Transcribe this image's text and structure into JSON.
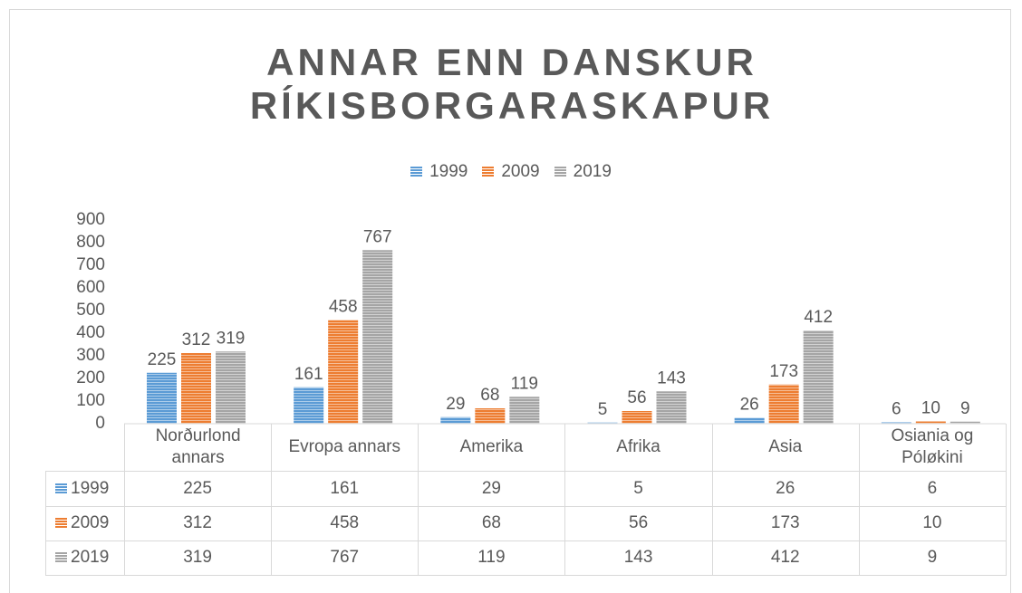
{
  "chart_data": {
    "type": "bar",
    "title": "ANNAR ENN DANSKUR RÍKISBORGARASKAPUR",
    "categories": [
      "Norðurlond annars",
      "Evropa annars",
      "Amerika",
      "Afrika",
      "Asia",
      "Osiania og Póløkini"
    ],
    "series": [
      {
        "name": "1999",
        "color": "#5b9bd5",
        "values": [
          225,
          161,
          29,
          5,
          26,
          6
        ]
      },
      {
        "name": "2009",
        "color": "#ed7d31",
        "values": [
          312,
          458,
          68,
          56,
          173,
          10
        ]
      },
      {
        "name": "2019",
        "color": "#a5a5a5",
        "values": [
          319,
          767,
          119,
          143,
          412,
          9
        ]
      }
    ],
    "ylim": [
      0,
      900
    ],
    "yticks": [
      0,
      100,
      200,
      300,
      400,
      500,
      600,
      700,
      800,
      900
    ],
    "legend": "top",
    "data_table": true,
    "grid": false
  }
}
